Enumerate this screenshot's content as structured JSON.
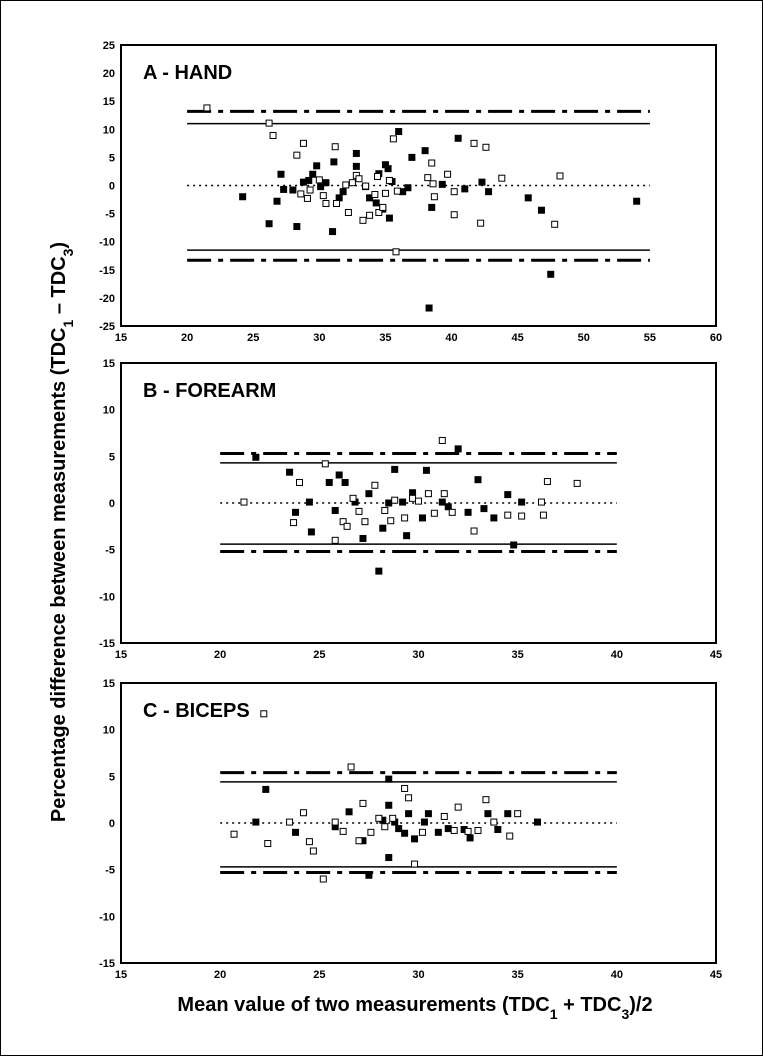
{
  "figure": {
    "ylabel": "Percentage difference between measurements (TDC1 – TDC3)",
    "ylabel_parts": [
      "Percentage difference between measurements (TDC",
      "1",
      " – TDC",
      "3",
      ")"
    ],
    "xlabel": "Mean value of two measurements (TDC1 + TDC3)/2",
    "xlabel_parts": [
      "Mean value of two measurements (TDC",
      "1",
      " + TDC",
      "3",
      ")/2"
    ]
  },
  "chart_data": [
    {
      "type": "scatter",
      "title": "A - HAND",
      "xlim": [
        15,
        60
      ],
      "ylim": [
        -25,
        25
      ],
      "x_ticks": [
        15,
        20,
        25,
        30,
        35,
        40,
        45,
        50,
        55,
        60
      ],
      "y_ticks": [
        25,
        20,
        15,
        10,
        5,
        0,
        -5,
        -10,
        -15,
        -20,
        -25
      ],
      "reference_lines": {
        "mean": 0,
        "upper_solid": 11,
        "lower_solid": -11.5,
        "upper_dashdot": 13.2,
        "lower_dashdot": -13.3,
        "x_range": [
          20,
          55
        ]
      },
      "series": [
        {
          "marker": "filled-square",
          "points": [
            [
              24.2,
              -2
            ],
            [
              26.2,
              -6.8
            ],
            [
              26.8,
              -2.8
            ],
            [
              27.1,
              2
            ],
            [
              27.3,
              -0.7
            ],
            [
              28.0,
              -0.8
            ],
            [
              28.3,
              -7.3
            ],
            [
              28.8,
              0.6
            ],
            [
              29.2,
              0.9
            ],
            [
              29.5,
              2
            ],
            [
              29.8,
              3.5
            ],
            [
              30.1,
              -0.2
            ],
            [
              30.5,
              0.5
            ],
            [
              31.0,
              -8.2
            ],
            [
              31.1,
              4.2
            ],
            [
              31.5,
              -2.2
            ],
            [
              31.8,
              -1.1
            ],
            [
              32.8,
              5.7
            ],
            [
              32.8,
              3.4
            ],
            [
              33.5,
              -0.2
            ],
            [
              33.8,
              -2.2
            ],
            [
              34.3,
              -3.1
            ],
            [
              34.5,
              2.1
            ],
            [
              34.8,
              -4.2
            ],
            [
              35.0,
              3.7
            ],
            [
              35.2,
              3
            ],
            [
              35.3,
              -5.8
            ],
            [
              35.5,
              0.7
            ],
            [
              36.0,
              9.6
            ],
            [
              36.3,
              -1.1
            ],
            [
              36.7,
              -0.4
            ],
            [
              37.0,
              5
            ],
            [
              38.0,
              6.2
            ],
            [
              38.3,
              -21.8
            ],
            [
              38.5,
              -3.9
            ],
            [
              39.3,
              0.2
            ],
            [
              40.5,
              8.4
            ],
            [
              41.0,
              -0.6
            ],
            [
              42.3,
              0.6
            ],
            [
              42.8,
              -1.1
            ],
            [
              45.8,
              -2.2
            ],
            [
              46.8,
              -4.4
            ],
            [
              47.5,
              -15.8
            ],
            [
              54.0,
              -2.8
            ]
          ]
        },
        {
          "marker": "open-square",
          "points": [
            [
              21.5,
              13.8
            ],
            [
              26.2,
              11.1
            ],
            [
              26.5,
              8.9
            ],
            [
              28.3,
              5.4
            ],
            [
              28.6,
              -1.5
            ],
            [
              28.8,
              7.5
            ],
            [
              29.1,
              -2.3
            ],
            [
              29.3,
              -0.8
            ],
            [
              30.0,
              1
            ],
            [
              30.3,
              -1.8
            ],
            [
              30.5,
              -3.2
            ],
            [
              31.2,
              6.9
            ],
            [
              31.3,
              -3.2
            ],
            [
              32.0,
              0.1
            ],
            [
              32.2,
              -4.8
            ],
            [
              32.5,
              0.5
            ],
            [
              32.8,
              1.8
            ],
            [
              33.0,
              1.2
            ],
            [
              33.3,
              -6.2
            ],
            [
              33.5,
              -0.1
            ],
            [
              33.8,
              -5.3
            ],
            [
              34.2,
              -1.6
            ],
            [
              34.4,
              1.6
            ],
            [
              34.5,
              -4.8
            ],
            [
              34.8,
              -3.9
            ],
            [
              35.0,
              -1.4
            ],
            [
              35.3,
              0.9
            ],
            [
              35.6,
              8.3
            ],
            [
              35.8,
              -11.8
            ],
            [
              35.9,
              -1
            ],
            [
              38.2,
              1.4
            ],
            [
              38.5,
              4
            ],
            [
              38.6,
              0.3
            ],
            [
              38.7,
              -2
            ],
            [
              39.7,
              2
            ],
            [
              40.2,
              -1.1
            ],
            [
              40.2,
              -5.2
            ],
            [
              41.7,
              7.5
            ],
            [
              42.2,
              -6.7
            ],
            [
              42.6,
              6.8
            ],
            [
              43.8,
              1.3
            ],
            [
              47.8,
              -6.9
            ],
            [
              48.2,
              1.7
            ]
          ]
        }
      ]
    },
    {
      "type": "scatter",
      "title": "B - FOREARM",
      "xlim": [
        15,
        45
      ],
      "ylim": [
        -15,
        15
      ],
      "x_ticks": [
        15,
        20,
        25,
        30,
        35,
        40,
        45
      ],
      "y_ticks": [
        15,
        10,
        5,
        0,
        -5,
        -10,
        -15
      ],
      "reference_lines": {
        "mean": 0,
        "upper_solid": 4.3,
        "lower_solid": -4.4,
        "upper_dashdot": 5.3,
        "lower_dashdot": -5.2,
        "x_range": [
          20,
          40
        ]
      },
      "series": [
        {
          "marker": "filled-square",
          "points": [
            [
              21.8,
              4.9
            ],
            [
              23.5,
              3.3
            ],
            [
              23.8,
              -1
            ],
            [
              24.5,
              0.1
            ],
            [
              24.6,
              -3.1
            ],
            [
              25.5,
              2.2
            ],
            [
              25.8,
              -0.8
            ],
            [
              26.0,
              3
            ],
            [
              26.3,
              2.2
            ],
            [
              26.8,
              0.1
            ],
            [
              27.2,
              -3.8
            ],
            [
              27.5,
              1
            ],
            [
              28.0,
              -7.3
            ],
            [
              28.2,
              -2.7
            ],
            [
              28.5,
              0
            ],
            [
              28.8,
              3.6
            ],
            [
              29.2,
              0.1
            ],
            [
              29.4,
              -3.5
            ],
            [
              29.7,
              1.1
            ],
            [
              30.2,
              -1.6
            ],
            [
              30.4,
              3.5
            ],
            [
              31.2,
              0.1
            ],
            [
              31.5,
              -0.4
            ],
            [
              32.0,
              5.8
            ],
            [
              32.5,
              -1
            ],
            [
              33.0,
              2.5
            ],
            [
              33.3,
              -0.6
            ],
            [
              33.8,
              -1.6
            ],
            [
              34.5,
              0.9
            ],
            [
              34.8,
              -4.5
            ],
            [
              35.2,
              0.1
            ]
          ]
        },
        {
          "marker": "open-square",
          "points": [
            [
              21.2,
              0.1
            ],
            [
              23.7,
              -2.1
            ],
            [
              24.0,
              2.2
            ],
            [
              25.3,
              4.2
            ],
            [
              25.8,
              -4
            ],
            [
              26.2,
              -2
            ],
            [
              26.4,
              -2.5
            ],
            [
              26.7,
              0.5
            ],
            [
              27.0,
              -0.9
            ],
            [
              27.3,
              -2
            ],
            [
              27.8,
              1.9
            ],
            [
              28.3,
              -0.8
            ],
            [
              28.6,
              -1.9
            ],
            [
              28.8,
              0.3
            ],
            [
              29.3,
              -1.6
            ],
            [
              29.7,
              0.5
            ],
            [
              30.0,
              0.2
            ],
            [
              30.5,
              1
            ],
            [
              30.8,
              -1.1
            ],
            [
              31.2,
              6.7
            ],
            [
              31.3,
              1
            ],
            [
              31.7,
              -1
            ],
            [
              32.8,
              -3
            ],
            [
              34.5,
              -1.3
            ],
            [
              35.2,
              -1.4
            ],
            [
              36.2,
              0.1
            ],
            [
              36.3,
              -1.3
            ],
            [
              36.5,
              2.3
            ],
            [
              38.0,
              2.1
            ]
          ]
        }
      ]
    },
    {
      "type": "scatter",
      "title": "C - BICEPS",
      "xlim": [
        15,
        45
      ],
      "ylim": [
        -15,
        15
      ],
      "x_ticks": [
        15,
        20,
        25,
        30,
        35,
        40,
        45
      ],
      "y_ticks": [
        15,
        10,
        5,
        0,
        -5,
        -10,
        -15
      ],
      "reference_lines": {
        "mean": 0,
        "upper_solid": 4.4,
        "lower_solid": -4.7,
        "upper_dashdot": 5.4,
        "lower_dashdot": -5.3,
        "x_range": [
          20,
          40
        ]
      },
      "series": [
        {
          "marker": "filled-square",
          "points": [
            [
              21.8,
              0.1
            ],
            [
              22.3,
              3.6
            ],
            [
              23.8,
              -1
            ],
            [
              25.8,
              -0.4
            ],
            [
              26.5,
              1.2
            ],
            [
              27.2,
              -1.9
            ],
            [
              27.5,
              -5.6
            ],
            [
              28.2,
              0.3
            ],
            [
              28.5,
              4.7
            ],
            [
              28.5,
              -3.7
            ],
            [
              28.5,
              1.9
            ],
            [
              28.8,
              0.1
            ],
            [
              29.0,
              -0.6
            ],
            [
              29.3,
              -1.1
            ],
            [
              29.5,
              1
            ],
            [
              29.8,
              -1.7
            ],
            [
              30.3,
              0.1
            ],
            [
              30.5,
              1
            ],
            [
              31.0,
              -1
            ],
            [
              31.5,
              -0.6
            ],
            [
              32.3,
              -0.7
            ],
            [
              32.6,
              -1.6
            ],
            [
              33.5,
              1
            ],
            [
              34.0,
              -0.7
            ],
            [
              34.5,
              1
            ],
            [
              36.0,
              0.1
            ]
          ]
        },
        {
          "marker": "open-square",
          "points": [
            [
              20.7,
              -1.2
            ],
            [
              22.2,
              11.7
            ],
            [
              22.4,
              -2.2
            ],
            [
              23.5,
              0.1
            ],
            [
              24.2,
              1.1
            ],
            [
              24.5,
              -2
            ],
            [
              24.7,
              -3
            ],
            [
              25.2,
              -6
            ],
            [
              25.8,
              0.1
            ],
            [
              26.2,
              -0.9
            ],
            [
              26.6,
              6
            ],
            [
              27.0,
              -1.9
            ],
            [
              27.2,
              2.1
            ],
            [
              27.6,
              -1
            ],
            [
              28.0,
              0.5
            ],
            [
              28.3,
              -0.4
            ],
            [
              28.7,
              0.5
            ],
            [
              29.3,
              3.7
            ],
            [
              29.5,
              2.7
            ],
            [
              29.8,
              -4.4
            ],
            [
              30.2,
              -1
            ],
            [
              31.3,
              0.7
            ],
            [
              31.8,
              -0.8
            ],
            [
              32.0,
              1.7
            ],
            [
              32.5,
              -0.9
            ],
            [
              33.0,
              -0.8
            ],
            [
              33.4,
              2.5
            ],
            [
              33.8,
              0.1
            ],
            [
              34.6,
              -1.4
            ],
            [
              35.0,
              1
            ]
          ]
        }
      ]
    }
  ]
}
